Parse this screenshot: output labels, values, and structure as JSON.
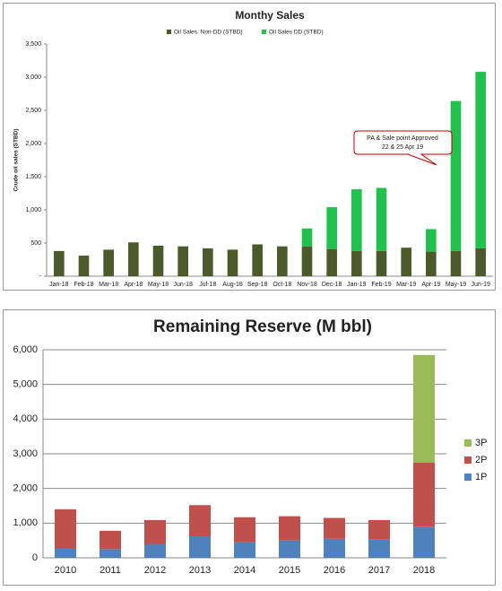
{
  "chart_data": [
    {
      "type": "stacked-bar",
      "title": "Monthy Sales",
      "y_label": "Crude oil sales (STBD)",
      "categories": [
        "Jan-18",
        "Feb-18",
        "Mar-18",
        "Apr-18",
        "May-18",
        "Jun-18",
        "Jul-18",
        "Aug-18",
        "Sep-18",
        "Oct-18",
        "Nov-18",
        "Dec-18",
        "Jan-19",
        "Feb-19",
        "Mar-19",
        "Apr-19",
        "May-19",
        "Jun-19"
      ],
      "series": [
        {
          "name": "Oil Sales. Non-DD (STBD)",
          "color": "#4b5a2a",
          "values": [
            380,
            310,
            400,
            510,
            460,
            450,
            420,
            400,
            480,
            450,
            450,
            410,
            380,
            380,
            430,
            370,
            380,
            420
          ]
        },
        {
          "name": "Oil Sales DD (STBD)",
          "color": "#22c04c",
          "values": [
            0,
            0,
            0,
            0,
            0,
            0,
            0,
            0,
            0,
            0,
            270,
            630,
            930,
            950,
            0,
            340,
            2260,
            2660
          ]
        }
      ],
      "ylim": [
        0,
        3500
      ],
      "yticks": [
        {
          "value": 0,
          "label": "-"
        },
        500,
        {
          "value": 1000,
          "label": "1,000"
        },
        {
          "value": 1500,
          "label": "1,500"
        },
        {
          "value": 2000,
          "label": "2,000"
        },
        {
          "value": 2500,
          "label": "2,500"
        },
        {
          "value": 3000,
          "label": "3,000"
        },
        {
          "value": 3500,
          "label": "3,500"
        }
      ],
      "grid": false,
      "legend": "top",
      "annotation": [
        "PA & Sale point Approved",
        "22 & 25 Apr 19"
      ]
    },
    {
      "type": "stacked-bar",
      "title": "Remaining Reserve (M bbl)",
      "categories": [
        "2010",
        "2011",
        "2012",
        "2013",
        "2014",
        "2015",
        "2016",
        "2017",
        "2018"
      ],
      "series": [
        {
          "name": "1P",
          "color": "#4f81bd",
          "values": [
            260,
            250,
            400,
            620,
            450,
            500,
            550,
            540,
            900
          ]
        },
        {
          "name": "2P",
          "color": "#c0504d",
          "values": [
            1140,
            530,
            690,
            900,
            720,
            700,
            600,
            550,
            1850
          ]
        },
        {
          "name": "3P",
          "color": "#9bbb59",
          "values": [
            0,
            0,
            0,
            0,
            0,
            0,
            0,
            0,
            3100
          ]
        }
      ],
      "ylim": [
        0,
        6000
      ],
      "yticks": [
        0,
        {
          "value": 1000,
          "label": "1,000"
        },
        {
          "value": 2000,
          "label": "2,000"
        },
        {
          "value": 3000,
          "label": "3,000"
        },
        {
          "value": 4000,
          "label": "4,000"
        },
        {
          "value": 5000,
          "label": "5,000"
        },
        {
          "value": 6000,
          "label": "6,000"
        }
      ],
      "grid": true,
      "legend": "right"
    }
  ]
}
